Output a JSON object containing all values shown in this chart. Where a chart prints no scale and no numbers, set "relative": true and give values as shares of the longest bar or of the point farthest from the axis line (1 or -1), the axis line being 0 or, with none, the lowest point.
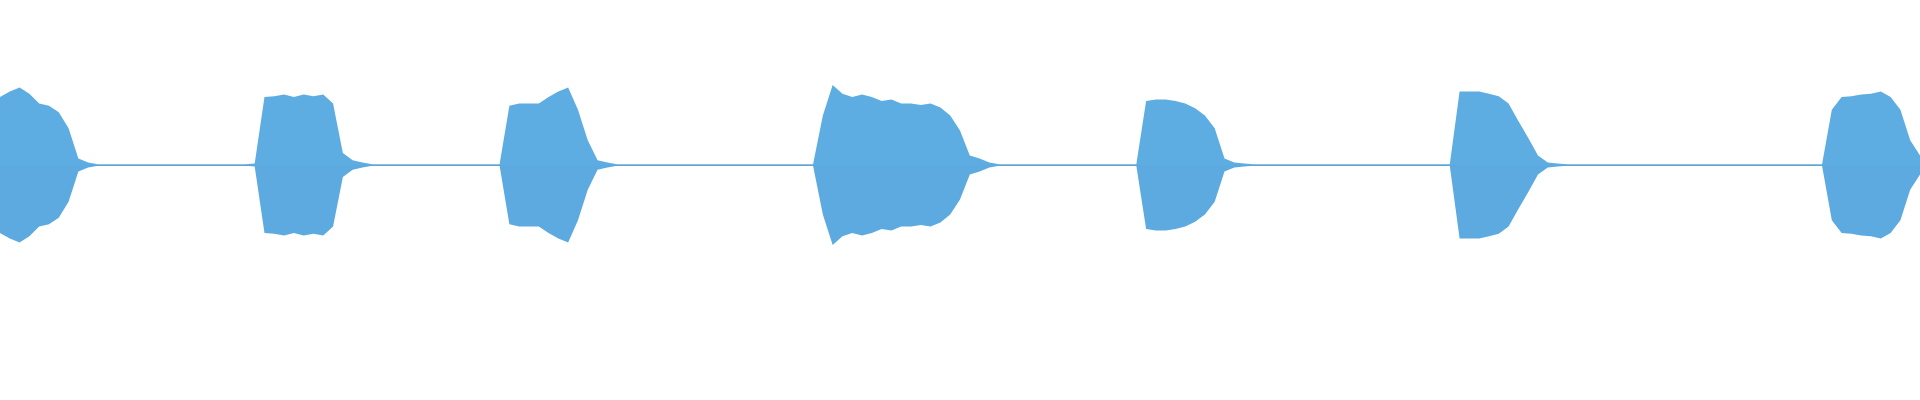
{
  "chart_data": {
    "type": "area",
    "relative": true,
    "categories": [
      null,
      null,
      null,
      null,
      null,
      null,
      null,
      null,
      null,
      null,
      null,
      null,
      null,
      null,
      null,
      null,
      null,
      null,
      null,
      null,
      null,
      null,
      null,
      null,
      null,
      null,
      null,
      null,
      null,
      null,
      null,
      null,
      null,
      null,
      null,
      null,
      null,
      null,
      null,
      null,
      null,
      null,
      null,
      null,
      null,
      null,
      null,
      null,
      null,
      null,
      null,
      null,
      null,
      null,
      null,
      null,
      null,
      null,
      null,
      null,
      null,
      null,
      null,
      null,
      null,
      null,
      null,
      null,
      null,
      null,
      null,
      null,
      null,
      null,
      null,
      null,
      null,
      null,
      null,
      null,
      null,
      null,
      null,
      null,
      null,
      null,
      null,
      null,
      null,
      null,
      null,
      null,
      null,
      null,
      null,
      null,
      null,
      null,
      null,
      null,
      null,
      null,
      null,
      null,
      null,
      null,
      null,
      null,
      null,
      null,
      null,
      null,
      null,
      null,
      null,
      null,
      null,
      null,
      null,
      null,
      null,
      null,
      null,
      null,
      null,
      null,
      null,
      null,
      null,
      null,
      null,
      null,
      null,
      null,
      null,
      null,
      null,
      null,
      null,
      null,
      null,
      null,
      null,
      null,
      null,
      null,
      null,
      null,
      null,
      null,
      null,
      null,
      null,
      null,
      null,
      null,
      null,
      null,
      null,
      null,
      null,
      null,
      null,
      null,
      null,
      null,
      null,
      null,
      null,
      null,
      null,
      null,
      null,
      null,
      null,
      null,
      null,
      null,
      null,
      null,
      null,
      null,
      null,
      null,
      null,
      null,
      null,
      null,
      null,
      null,
      null,
      null,
      null,
      null,
      null,
      null,
      null
    ],
    "series": [
      {
        "color": "#5dade2",
        "values": [
          0.85,
          0.92,
          0.97,
          0.89,
          0.77,
          0.74,
          0.66,
          0.46,
          0.08,
          0.03,
          0.01,
          0.01,
          0.01,
          0.01,
          0.01,
          0.01,
          0.01,
          0.01,
          0.01,
          0.01,
          0.01,
          0.01,
          0.01,
          0.01,
          0.01,
          0.01,
          0.02,
          0.85,
          0.86,
          0.88,
          0.85,
          0.88,
          0.86,
          0.88,
          0.77,
          0.15,
          0.06,
          0.03,
          0.01,
          0.01,
          0.01,
          0.01,
          0.01,
          0.01,
          0.01,
          0.01,
          0.01,
          0.01,
          0.01,
          0.01,
          0.01,
          0.01,
          0.74,
          0.77,
          0.77,
          0.77,
          0.85,
          0.92,
          0.97,
          0.69,
          0.31,
          0.06,
          0.03,
          0.01,
          0.01,
          0.01,
          0.01,
          0.01,
          0.01,
          0.01,
          0.01,
          0.01,
          0.01,
          0.01,
          0.01,
          0.01,
          0.01,
          0.01,
          0.01,
          0.01,
          0.01,
          0.01,
          0.01,
          0.01,
          0.62,
          1,
          0.89,
          0.85,
          0.88,
          0.85,
          0.8,
          0.82,
          0.77,
          0.77,
          0.75,
          0.77,
          0.72,
          0.62,
          0.43,
          0.12,
          0.08,
          0.03,
          0.01,
          0.01,
          0.01,
          0.01,
          0.01,
          0.01,
          0.01,
          0.01,
          0.01,
          0.01,
          0.01,
          0.01,
          0.01,
          0.01,
          0.01,
          0.8,
          0.82,
          0.82,
          0.8,
          0.77,
          0.71,
          0.62,
          0.46,
          0.08,
          0.03,
          0.02,
          0.01,
          0.01,
          0.01,
          0.01,
          0.01,
          0.01,
          0.01,
          0.01,
          0.01,
          0.01,
          0.01,
          0.01,
          0.01,
          0.01,
          0.01,
          0.01,
          0.01,
          0.01,
          0.01,
          0.01,
          0.01,
          0.92,
          0.92,
          0.92,
          0.89,
          0.86,
          0.77,
          0.55,
          0.34,
          0.12,
          0.03,
          0.02,
          0.01,
          0.01,
          0.01,
          0.01,
          0.01,
          0.01,
          0.01,
          0.01,
          0.01,
          0.01,
          0.01,
          0.01,
          0.01,
          0.01,
          0.01,
          0.01,
          0.01,
          0.01,
          0.01,
          0.01,
          0.01,
          0.01,
          0.01,
          0.01,
          0.01,
          0.01,
          0.01,
          0.69,
          0.85,
          0.86,
          0.88,
          0.89,
          0.92,
          0.85,
          0.69,
          0.31,
          0.12
        ]
      },
      {
        "color": "#5caae0",
        "values": [
          -0.85,
          -0.92,
          -0.97,
          -0.89,
          -0.77,
          -0.74,
          -0.66,
          -0.46,
          -0.08,
          -0.03,
          -0.01,
          -0.01,
          -0.01,
          -0.01,
          -0.01,
          -0.01,
          -0.01,
          -0.01,
          -0.01,
          -0.01,
          -0.01,
          -0.01,
          -0.01,
          -0.01,
          -0.01,
          -0.01,
          -0.02,
          -0.85,
          -0.86,
          -0.88,
          -0.85,
          -0.88,
          -0.86,
          -0.88,
          -0.77,
          -0.15,
          -0.06,
          -0.03,
          -0.01,
          -0.01,
          -0.01,
          -0.01,
          -0.01,
          -0.01,
          -0.01,
          -0.01,
          -0.01,
          -0.01,
          -0.01,
          -0.01,
          -0.01,
          -0.01,
          -0.74,
          -0.77,
          -0.77,
          -0.77,
          -0.85,
          -0.92,
          -0.97,
          -0.69,
          -0.31,
          -0.06,
          -0.03,
          -0.01,
          -0.01,
          -0.01,
          -0.01,
          -0.01,
          -0.01,
          -0.01,
          -0.01,
          -0.01,
          -0.01,
          -0.01,
          -0.01,
          -0.01,
          -0.01,
          -0.01,
          -0.01,
          -0.01,
          -0.01,
          -0.01,
          -0.01,
          -0.01,
          -0.62,
          -1,
          -0.89,
          -0.85,
          -0.88,
          -0.85,
          -0.8,
          -0.82,
          -0.77,
          -0.77,
          -0.75,
          -0.77,
          -0.72,
          -0.62,
          -0.43,
          -0.12,
          -0.08,
          -0.03,
          -0.01,
          -0.01,
          -0.01,
          -0.01,
          -0.01,
          -0.01,
          -0.01,
          -0.01,
          -0.01,
          -0.01,
          -0.01,
          -0.01,
          -0.01,
          -0.01,
          -0.01,
          -0.8,
          -0.82,
          -0.82,
          -0.8,
          -0.77,
          -0.71,
          -0.62,
          -0.46,
          -0.08,
          -0.03,
          -0.02,
          -0.01,
          -0.01,
          -0.01,
          -0.01,
          -0.01,
          -0.01,
          -0.01,
          -0.01,
          -0.01,
          -0.01,
          -0.01,
          -0.01,
          -0.01,
          -0.01,
          -0.01,
          -0.01,
          -0.01,
          -0.01,
          -0.01,
          -0.01,
          -0.01,
          -0.92,
          -0.92,
          -0.92,
          -0.89,
          -0.86,
          -0.77,
          -0.55,
          -0.34,
          -0.12,
          -0.03,
          -0.02,
          -0.01,
          -0.01,
          -0.01,
          -0.01,
          -0.01,
          -0.01,
          -0.01,
          -0.01,
          -0.01,
          -0.01,
          -0.01,
          -0.01,
          -0.01,
          -0.01,
          -0.01,
          -0.01,
          -0.01,
          -0.01,
          -0.01,
          -0.01,
          -0.01,
          -0.01,
          -0.01,
          -0.01,
          -0.01,
          -0.01,
          -0.01,
          -0.69,
          -0.85,
          -0.86,
          -0.88,
          -0.89,
          -0.92,
          -0.85,
          -0.69,
          -0.31,
          -0.12
        ]
      }
    ]
  }
}
